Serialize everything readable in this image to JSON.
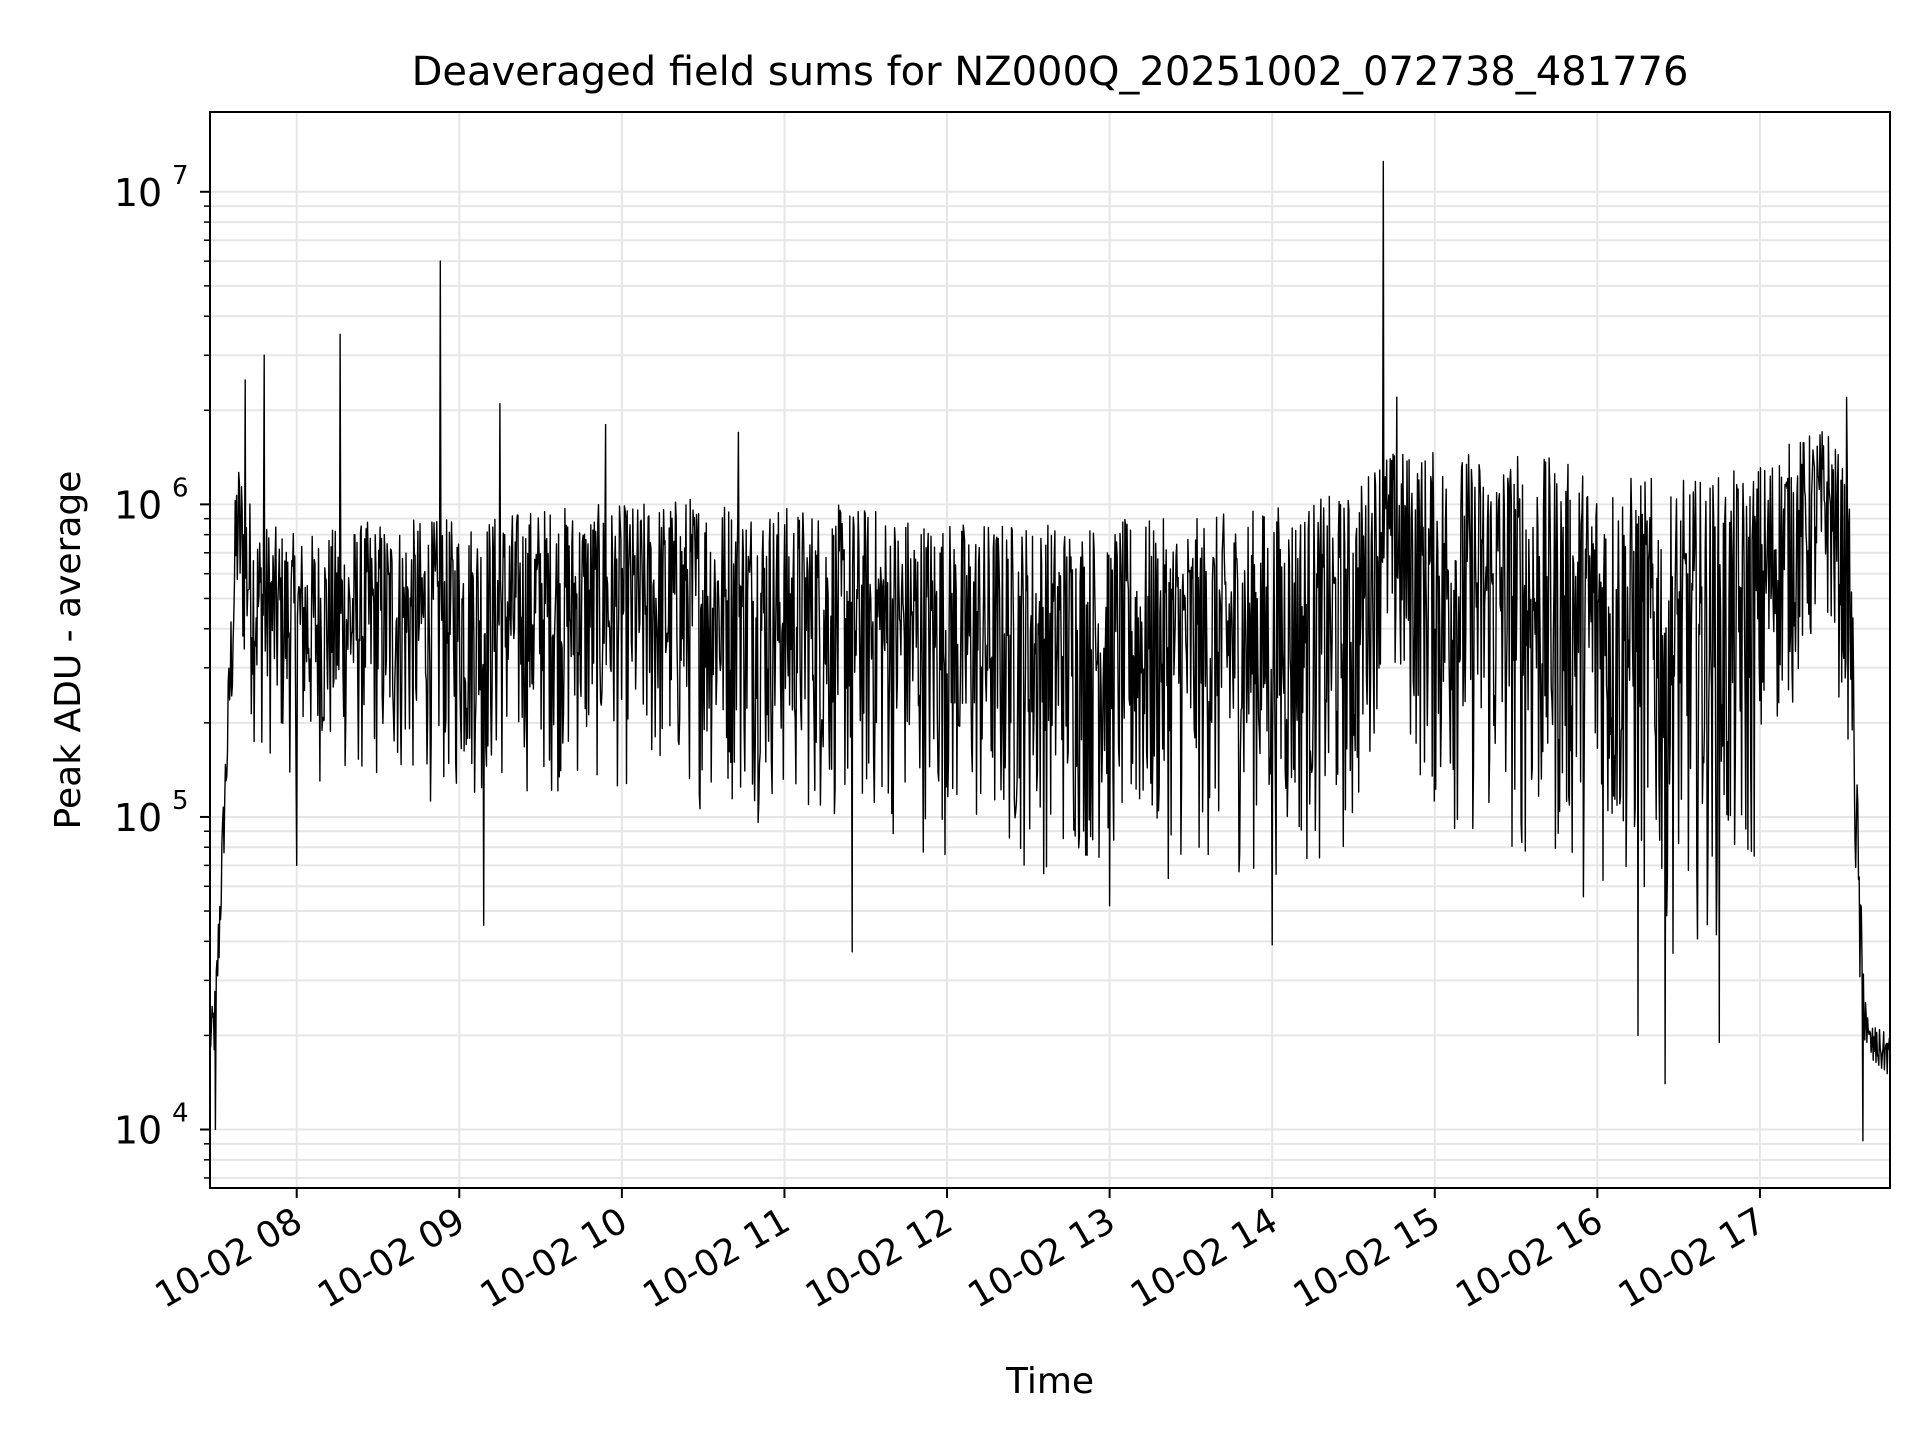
{
  "chart_data": {
    "type": "line",
    "title": "Deaveraged field sums for NZ000Q_20251002_072738_481776",
    "xlabel": "Time",
    "ylabel": "Peak ADU - average",
    "yscale": "log",
    "ylim": [
      6500,
      18000000
    ],
    "xlim": [
      "2025-10-02 07:28",
      "2025-10-02 17:48"
    ],
    "x_ticks": [
      "10-02 08",
      "10-02 09",
      "10-02 10",
      "10-02 11",
      "10-02 12",
      "10-02 13",
      "10-02 14",
      "10-02 15",
      "10-02 16",
      "10-02 17"
    ],
    "x_tick_times": [
      "2025-10-02 08:00",
      "2025-10-02 09:00",
      "2025-10-02 10:00",
      "2025-10-02 11:00",
      "2025-10-02 12:00",
      "2025-10-02 13:00",
      "2025-10-02 14:00",
      "2025-10-02 15:00",
      "2025-10-02 16:00",
      "2025-10-02 17:00"
    ],
    "y_ticks": [
      {
        "base": "10",
        "exp": "4",
        "value": 10000
      },
      {
        "base": "10",
        "exp": "5",
        "value": 100000
      },
      {
        "base": "10",
        "exp": "6",
        "value": 1000000
      },
      {
        "base": "10",
        "exp": "7",
        "value": 10000000
      }
    ],
    "grid": true,
    "line_color": "#000000",
    "grid_color": "#e6e6e6",
    "envelope": {
      "description_of_series": "dense noisy time series",
      "times": [
        "2025-10-02 07:28",
        "2025-10-02 07:30",
        "2025-10-02 07:33",
        "2025-10-02 07:38",
        "2025-10-02 07:45",
        "2025-10-02 08:00",
        "2025-10-02 08:30",
        "2025-10-02 09:00",
        "2025-10-02 09:30",
        "2025-10-02 10:00",
        "2025-10-02 10:30",
        "2025-10-02 11:00",
        "2025-10-02 11:30",
        "2025-10-02 12:00",
        "2025-10-02 12:30",
        "2025-10-02 13:00",
        "2025-10-02 13:30",
        "2025-10-02 14:00",
        "2025-10-02 14:30",
        "2025-10-02 14:40",
        "2025-10-02 15:00",
        "2025-10-02 15:30",
        "2025-10-02 16:00",
        "2025-10-02 16:30",
        "2025-10-02 16:55",
        "2025-10-02 17:05",
        "2025-10-02 17:25",
        "2025-10-02 17:33",
        "2025-10-02 17:37",
        "2025-10-02 17:40",
        "2025-10-02 17:48"
      ],
      "low": [
        15000,
        14000,
        60000,
        300000,
        150000,
        120000,
        110000,
        100000,
        110000,
        110000,
        100000,
        90000,
        80000,
        70000,
        60000,
        60000,
        60000,
        60000,
        60000,
        250000,
        80000,
        60000,
        50000,
        35000,
        40000,
        150000,
        350000,
        150000,
        20000,
        14000,
        14000
      ],
      "high": [
        22000,
        30000,
        120000,
        1500000,
        900000,
        800000,
        900000,
        900000,
        1000000,
        1000000,
        1100000,
        1000000,
        1000000,
        900000,
        900000,
        900000,
        900000,
        1000000,
        1100000,
        1500000,
        1500000,
        1500000,
        1300000,
        1200000,
        1300000,
        1500000,
        1800000,
        1200000,
        60000,
        22000,
        20000
      ]
    },
    "spikes": [
      {
        "time": "2025-10-02 07:41",
        "value": 2500000
      },
      {
        "time": "2025-10-02 07:48",
        "value": 3000000
      },
      {
        "time": "2025-10-02 08:16",
        "value": 3500000
      },
      {
        "time": "2025-10-02 08:53",
        "value": 6000000
      },
      {
        "time": "2025-10-02 09:15",
        "value": 2100000
      },
      {
        "time": "2025-10-02 09:54",
        "value": 1800000
      },
      {
        "time": "2025-10-02 10:43",
        "value": 1700000
      },
      {
        "time": "2025-10-02 14:41",
        "value": 12500000
      },
      {
        "time": "2025-10-02 14:46",
        "value": 2200000
      },
      {
        "time": "2025-10-02 17:32",
        "value": 2200000
      }
    ],
    "dips": [
      {
        "time": "2025-10-02 07:30",
        "value": 10000
      },
      {
        "time": "2025-10-02 08:00",
        "value": 70000
      },
      {
        "time": "2025-10-02 09:09",
        "value": 45000
      },
      {
        "time": "2025-10-02 11:25",
        "value": 37000
      },
      {
        "time": "2025-10-02 13:00",
        "value": 52000
      },
      {
        "time": "2025-10-02 14:00",
        "value": 39000
      },
      {
        "time": "2025-10-02 16:15",
        "value": 20000
      },
      {
        "time": "2025-10-02 16:25",
        "value": 14000
      },
      {
        "time": "2025-10-02 16:45",
        "value": 19000
      },
      {
        "time": "2025-10-02 17:38",
        "value": 9200
      }
    ]
  }
}
